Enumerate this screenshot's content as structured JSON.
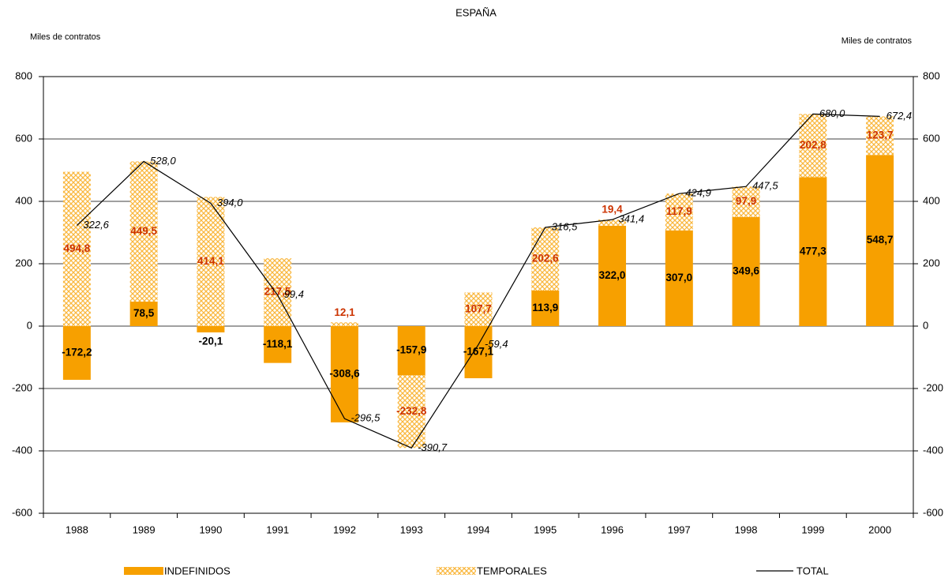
{
  "chart_data": {
    "type": "stacked_bar_line",
    "title": "ESPAÑA",
    "y_label": "Miles de contratos",
    "y2_label": "Miles de contratos",
    "categories": [
      "1988",
      "1989",
      "1990",
      "1991",
      "1992",
      "1993",
      "1994",
      "1995",
      "1996",
      "1997",
      "1998",
      "1999",
      "2000"
    ],
    "series": [
      {
        "name": "INDEFINIDOS",
        "color": "#f7a000",
        "kind": "bar",
        "values": [
          -172.2,
          78.5,
          -20.1,
          -118.1,
          -308.6,
          -157.9,
          -167.1,
          113.9,
          322.0,
          307.0,
          349.6,
          477.3,
          548.7
        ],
        "value_labels": [
          "-172,2",
          "78,5",
          "-20,1",
          "-118,1",
          "-308,6",
          "-157,9",
          "-167,1",
          "113,9",
          "322,0",
          "307,0",
          "349,6",
          "477,3",
          "548,7"
        ],
        "label_color": "#000000"
      },
      {
        "name": "TEMPORALES",
        "color": "#f7a000",
        "kind": "bar",
        "hatch": true,
        "values": [
          494.8,
          449.5,
          414.1,
          217.5,
          12.1,
          -232.8,
          107.7,
          202.6,
          19.4,
          117.9,
          97.9,
          202.8,
          123.7
        ],
        "value_labels": [
          "494,8",
          "449,5",
          "414,1",
          "217,5",
          "12,1",
          "-232,8",
          "107,7",
          "202,6",
          "19,4",
          "117,9",
          "97,9",
          "202,8",
          "123,7"
        ],
        "label_color": "#cc3300"
      },
      {
        "name": "TOTAL",
        "color": "#000000",
        "kind": "line",
        "values": [
          322.6,
          528.0,
          394.0,
          99.4,
          -296.5,
          -390.7,
          -59.4,
          316.5,
          341.4,
          424.9,
          447.5,
          680.0,
          672.4
        ],
        "value_labels": [
          "322,6",
          "528,0",
          "394,0",
          "99,4",
          "-296,5",
          "-390,7",
          "-59,4",
          "316,5",
          "341,4",
          "424,9",
          "447,5",
          "680,0",
          "672,4"
        ]
      }
    ],
    "ylim": [
      -600,
      800
    ],
    "yticks": [
      -600,
      -400,
      -200,
      0,
      200,
      400,
      600,
      800
    ],
    "y2lim": [
      -600,
      800
    ],
    "y2ticks": [
      -600,
      -400,
      -200,
      0,
      200,
      400,
      600,
      800
    ],
    "grid": true,
    "legend": "bottom"
  }
}
